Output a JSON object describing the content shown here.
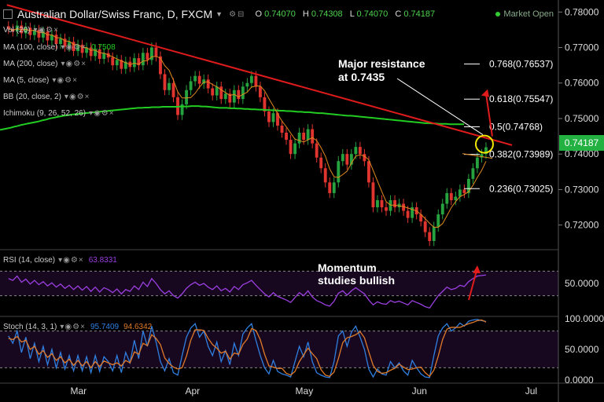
{
  "header": {
    "title": "Australian Dollar/Swiss Franc, D, FXCM",
    "ohlc": [
      {
        "label": "O",
        "value": "0.74070"
      },
      {
        "label": "H",
        "value": "0.74308"
      },
      {
        "label": "L",
        "value": "0.74070"
      },
      {
        "label": "C",
        "value": "0.74187"
      }
    ],
    "market_status": "Market Open"
  },
  "indicators": [
    {
      "label": "Vol (20)",
      "value": ""
    },
    {
      "label": "MA (100, close)",
      "value": "0.7508"
    },
    {
      "label": "MA (200, close)",
      "value": ""
    },
    {
      "label": "MA (5, close)",
      "value": ""
    },
    {
      "label": "BB (20, close, 2)",
      "value": ""
    },
    {
      "label": "Ichimoku (9, 26, 52, 26)",
      "value": ""
    }
  ],
  "rsi_panel": {
    "label": "RSI (14, close)",
    "value": "63.8331"
  },
  "stoch_panel": {
    "label": "Stoch (14, 3, 1)",
    "k": "95.7409",
    "d": "94.6342"
  },
  "current_price": "0.74187",
  "colors": {
    "up": "#26a33f",
    "down": "#e0342f",
    "trend": "#e01b1b",
    "ma100": "#22cc22",
    "ma5": "#e08a1e",
    "rsi": "#9b3fe0",
    "stoch_k": "#2f7fe0",
    "stoch_d": "#e07a2a",
    "annotation_arrow": "#e01b1b"
  },
  "annotations": {
    "resistance": "Major resistance\nat 0.7435",
    "momentum": "Momentum\nstudies bullish"
  },
  "chart_data": [
    {
      "type": "candlestick",
      "title": "Australian Dollar/Swiss Franc, D, FXCM",
      "ylim": [
        0.7135,
        0.7825
      ],
      "y_ticks": [
        "0.78000",
        "0.77000",
        "0.76000",
        "0.75000",
        "0.74000",
        "0.73000",
        "0.72000"
      ],
      "x_ticks": [
        "Mar",
        "Apr",
        "May",
        "Jun",
        "Jul"
      ],
      "close": [
        0.7752,
        0.7745,
        0.7762,
        0.774,
        0.7756,
        0.7735,
        0.775,
        0.7728,
        0.7745,
        0.772,
        0.7736,
        0.771,
        0.7725,
        0.7702,
        0.7716,
        0.769,
        0.7708,
        0.7685,
        0.77,
        0.7676,
        0.7695,
        0.7668,
        0.7684,
        0.7672,
        0.765,
        0.7665,
        0.764,
        0.766,
        0.7645,
        0.767,
        0.765,
        0.7685,
        0.7665,
        0.77,
        0.7675,
        0.7625,
        0.758,
        0.76,
        0.756,
        0.751,
        0.754,
        0.758,
        0.7605,
        0.762,
        0.7598,
        0.761,
        0.7585,
        0.7565,
        0.759,
        0.7555,
        0.757,
        0.7545,
        0.758,
        0.7555,
        0.759,
        0.76,
        0.762,
        0.759,
        0.756,
        0.752,
        0.749,
        0.7515,
        0.748,
        0.746,
        0.744,
        0.74,
        0.743,
        0.746,
        0.744,
        0.747,
        0.743,
        0.739,
        0.736,
        0.732,
        0.729,
        0.732,
        0.738,
        0.74,
        0.737,
        0.74,
        0.742,
        0.74,
        0.738,
        0.732,
        0.725,
        0.727,
        0.725,
        0.724,
        0.727,
        0.725,
        0.726,
        0.724,
        0.722,
        0.725,
        0.723,
        0.721,
        0.718,
        0.7155,
        0.7195,
        0.723,
        0.726,
        0.729,
        0.727,
        0.728,
        0.73,
        0.729,
        0.733,
        0.736,
        0.739,
        0.74,
        0.7419
      ],
      "annotations": [
        "Major resistance\nat 0.7435"
      ],
      "fib_levels": [
        {
          "label": "0.768(0.76537)",
          "value": 0.76537
        },
        {
          "label": "0.618(0.75547)",
          "value": 0.75547
        },
        {
          "label": "0.5(0.74768)",
          "value": 0.74768
        },
        {
          "label": "0.382(0.73989)",
          "value": 0.73989
        },
        {
          "label": "0.236(0.73025)",
          "value": 0.73025
        }
      ],
      "ma100": [
        0.7468,
        0.747,
        0.7472,
        0.7474,
        0.7477,
        0.7479,
        0.7482,
        0.7484,
        0.7486,
        0.7488,
        0.749,
        0.7492,
        0.7495,
        0.7497,
        0.75,
        0.7502,
        0.7504,
        0.7506,
        0.7508,
        0.7509,
        0.7511,
        0.7512,
        0.7513,
        0.7514,
        0.7515,
        0.7516,
        0.7517,
        0.7518,
        0.7519,
        0.752,
        0.7521,
        0.7522,
        0.7523,
        0.7524,
        0.7525,
        0.7526,
        0.7527,
        0.7528,
        0.7529,
        0.753,
        0.753,
        0.7531,
        0.7531,
        0.7532,
        0.7532,
        0.7532,
        0.7533,
        0.7533,
        0.7533,
        0.7533,
        0.7533,
        0.7534,
        0.7534,
        0.7534,
        0.7535,
        0.7535,
        0.7535,
        0.7534,
        0.7534,
        0.7533,
        0.7532,
        0.7531,
        0.753,
        0.753,
        0.753,
        0.7529,
        0.7529,
        0.7528,
        0.7528,
        0.7527,
        0.7527,
        0.7526,
        0.7526,
        0.7525,
        0.7525,
        0.7524,
        0.7524,
        0.7523,
        0.7523,
        0.7522,
        0.7522,
        0.7521,
        0.7521,
        0.752,
        0.7519,
        0.7519,
        0.7518,
        0.7518,
        0.7517,
        0.7516,
        0.7515,
        0.7515,
        0.7514,
        0.7513,
        0.7512,
        0.7511,
        0.751,
        0.7509,
        0.7508,
        0.7508,
        0.7507,
        0.7506,
        0.7505,
        0.7504,
        0.7503,
        0.7502,
        0.7501,
        0.75,
        0.7499,
        0.7498,
        0.7497,
        0.7496,
        0.7495,
        0.7494,
        0.7493,
        0.7492,
        0.7491,
        0.749,
        0.7489,
        0.7488,
        0.7487,
        0.7487,
        0.7486,
        0.7486,
        0.7485,
        0.7485,
        0.7485,
        0.7484,
        0.7484,
        0.7484,
        0.7484,
        0.7484
      ],
      "trend_line": [
        [
          0,
          0.782
        ],
        [
          116,
          0.7425
        ]
      ]
    },
    {
      "type": "line",
      "title": "RSI (14, close)",
      "ylim": [
        0,
        100
      ],
      "y_ticks": [
        "50.0000"
      ],
      "series": [
        {
          "name": "RSI (14, close)",
          "values": [
            58,
            55,
            62,
            52,
            57,
            49,
            55,
            48,
            53,
            46,
            51,
            44,
            49,
            42,
            47,
            40,
            46,
            39,
            45,
            37,
            44,
            36,
            43,
            40,
            35,
            41,
            33,
            40,
            37,
            46,
            40,
            52,
            45,
            58,
            50,
            40,
            33,
            38,
            30,
            26,
            33,
            42,
            48,
            52,
            47,
            50,
            44,
            40,
            46,
            38,
            42,
            36,
            45,
            40,
            48,
            51,
            55,
            47,
            40,
            33,
            28,
            35,
            29,
            26,
            23,
            19,
            27,
            35,
            30,
            38,
            28,
            22,
            19,
            15,
            13,
            21,
            34,
            38,
            31,
            38,
            43,
            38,
            33,
            23,
            15,
            20,
            17,
            16,
            22,
            19,
            21,
            18,
            15,
            22,
            19,
            16,
            12,
            10,
            20,
            30,
            37,
            44,
            40,
            42,
            47,
            45,
            53,
            58,
            62,
            63,
            63.8
          ]
        }
      ]
    },
    {
      "type": "line",
      "title": "Stoch (14, 3, 1)",
      "ylim": [
        0,
        100
      ],
      "y_ticks": [
        "100.0000",
        "50.0000",
        "0.0000"
      ],
      "series": [
        {
          "name": "K",
          "values": [
            72,
            60,
            80,
            45,
            70,
            35,
            60,
            30,
            55,
            25,
            50,
            20,
            45,
            18,
            40,
            15,
            40,
            15,
            38,
            12,
            40,
            14,
            38,
            30,
            15,
            40,
            12,
            45,
            28,
            65,
            35,
            80,
            55,
            88,
            62,
            30,
            15,
            35,
            12,
            8,
            40,
            70,
            85,
            92,
            70,
            80,
            55,
            40,
            62,
            30,
            48,
            25,
            60,
            40,
            75,
            85,
            92,
            65,
            40,
            20,
            10,
            32,
            14,
            10,
            8,
            5,
            30,
            55,
            38,
            62,
            30,
            12,
            8,
            5,
            4,
            30,
            72,
            80,
            55,
            78,
            88,
            70,
            50,
            18,
            5,
            18,
            10,
            8,
            30,
            20,
            28,
            15,
            8,
            32,
            20,
            10,
            5,
            4,
            40,
            72,
            85,
            92,
            80,
            85,
            93,
            88,
            96,
            98,
            99,
            97,
            95.7
          ]
        },
        {
          "name": "D",
          "values": [
            68,
            66,
            71,
            62,
            65,
            50,
            55,
            42,
            48,
            37,
            43,
            32,
            38,
            28,
            34,
            24,
            32,
            23,
            30,
            20,
            30,
            22,
            31,
            28,
            25,
            28,
            23,
            32,
            28,
            46,
            42,
            60,
            56,
            74,
            68,
            58,
            36,
            27,
            21,
            18,
            20,
            39,
            65,
            82,
            82,
            81,
            68,
            58,
            52,
            44,
            47,
            34,
            44,
            42,
            58,
            67,
            84,
            81,
            66,
            42,
            23,
            21,
            19,
            19,
            11,
            8,
            14,
            30,
            41,
            52,
            43,
            35,
            17,
            8,
            6,
            13,
            35,
            61,
            69,
            71,
            74,
            79,
            69,
            46,
            24,
            14,
            11,
            12,
            16,
            19,
            26,
            21,
            17,
            18,
            20,
            21,
            12,
            6,
            16,
            39,
            66,
            83,
            86,
            86,
            86,
            89,
            92,
            94,
            97,
            98,
            94.6
          ]
        }
      ]
    }
  ]
}
